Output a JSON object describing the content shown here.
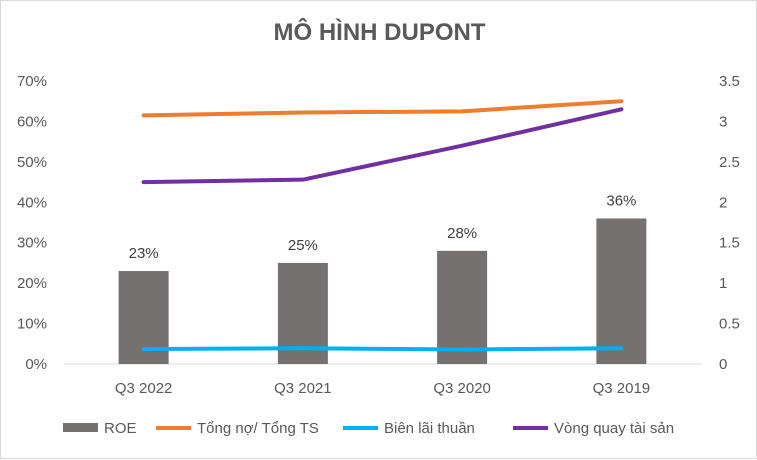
{
  "chart_data": {
    "type": "bar",
    "title": "MÔ HÌNH DUPONT",
    "categories": [
      "Q3 2022",
      "Q3 2021",
      "Q3 2020",
      "Q3 2019"
    ],
    "y_left": {
      "ticks": [
        "0%",
        "10%",
        "20%",
        "30%",
        "40%",
        "50%",
        "60%",
        "70%"
      ],
      "ylim": [
        0,
        0.7
      ]
    },
    "y_right": {
      "ticks": [
        "0",
        "0.5",
        "1",
        "1.5",
        "2",
        "2.5",
        "3",
        "3.5"
      ],
      "ylim": [
        0,
        3.5
      ]
    },
    "grid": false,
    "legend_position": "bottom",
    "series": [
      {
        "name": "ROE",
        "kind": "bar",
        "axis": "left",
        "color": "#767171",
        "values": [
          0.23,
          0.25,
          0.28,
          0.36
        ],
        "labels": [
          "23%",
          "25%",
          "28%",
          "36%"
        ]
      },
      {
        "name": "Tổng nợ/ Tổng TS",
        "kind": "line",
        "axis": "left",
        "color": "#ED7D31",
        "values": [
          0.615,
          0.622,
          0.625,
          0.65
        ]
      },
      {
        "name": "Biên lãi thuần",
        "kind": "line",
        "axis": "left",
        "color": "#00B0F0",
        "values": [
          0.037,
          0.039,
          0.036,
          0.039
        ]
      },
      {
        "name": "Vòng quay tài sản",
        "kind": "line",
        "axis": "right",
        "color": "#7030A0",
        "values": [
          2.25,
          2.28,
          2.7,
          3.15
        ]
      }
    ]
  }
}
